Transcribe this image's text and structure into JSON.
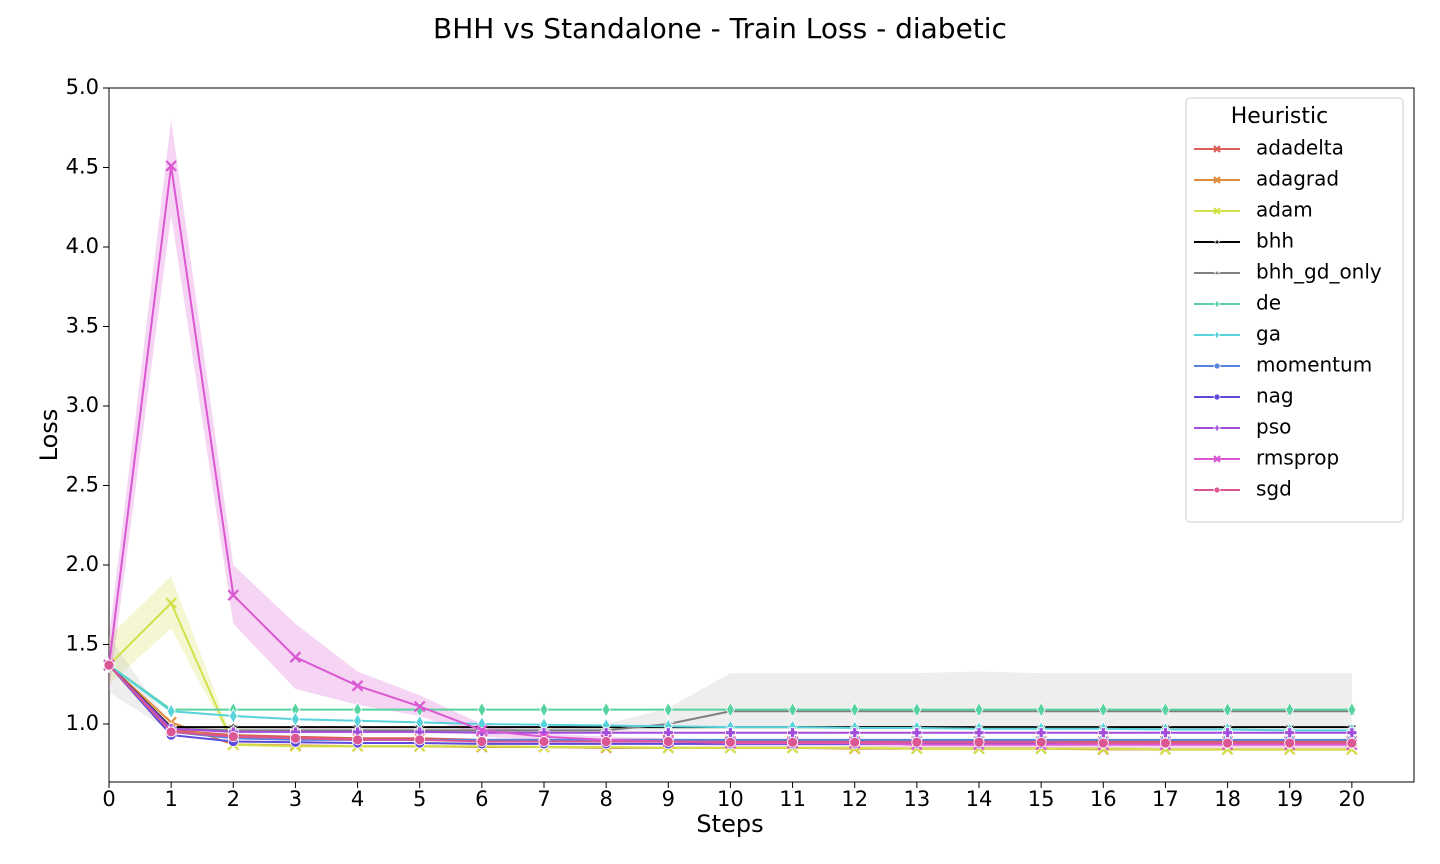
{
  "chart_data": {
    "type": "line",
    "title": "BHH vs Standalone - Train Loss - diabetic",
    "x_label": "Steps",
    "y_label": "Loss",
    "legend_title": "Heuristic",
    "legend": "upper right",
    "x": [
      0,
      1,
      2,
      3,
      4,
      5,
      6,
      7,
      8,
      9,
      10,
      11,
      12,
      13,
      14,
      15,
      16,
      17,
      18,
      19,
      20
    ],
    "xlim": [
      0,
      21
    ],
    "xticks": [
      0,
      1,
      2,
      3,
      4,
      5,
      6,
      7,
      8,
      9,
      10,
      11,
      12,
      13,
      14,
      15,
      16,
      17,
      18,
      19,
      20
    ],
    "ylim": [
      0.635,
      5.0
    ],
    "yticks": [
      {
        "value": 1.0,
        "label": "1.0"
      },
      1.5,
      {
        "value": 2.0,
        "label": "2.0"
      },
      2.5,
      {
        "value": 3.0,
        "label": "3.0"
      },
      3.5,
      {
        "value": 4.0,
        "label": "4.0"
      },
      4.5,
      {
        "value": 5.0,
        "label": "5.0"
      }
    ],
    "series": [
      {
        "name": "adadelta",
        "color": "#db5f57",
        "marker": "x",
        "values": [
          1.37,
          0.96,
          0.93,
          0.92,
          0.91,
          0.91,
          0.9,
          0.9,
          0.9,
          0.9,
          0.89,
          0.89,
          0.89,
          0.89,
          0.89,
          0.89,
          0.89,
          0.89,
          0.89,
          0.89,
          0.89
        ]
      },
      {
        "name": "adagrad",
        "color": "#e08c3e",
        "marker": "x",
        "values": [
          1.37,
          1.01,
          0.87,
          0.865,
          0.86,
          0.86,
          0.855,
          0.855,
          0.85,
          0.85,
          0.85,
          0.85,
          0.845,
          0.845,
          0.845,
          0.845,
          0.84,
          0.84,
          0.84,
          0.84,
          0.84
        ]
      },
      {
        "name": "adam",
        "color": "#d3e04c",
        "marker": "x",
        "values": [
          1.37,
          1.76,
          0.87,
          0.86,
          0.86,
          0.86,
          0.86,
          0.855,
          0.855,
          0.85,
          0.85,
          0.85,
          0.85,
          0.845,
          0.845,
          0.845,
          0.845,
          0.84,
          0.84,
          0.84,
          0.84
        ],
        "band_lower": [
          1.25,
          1.6,
          0.86,
          0.85,
          0.85,
          0.85,
          0.85,
          0.845,
          0.845,
          0.84,
          0.84,
          0.84,
          0.84,
          0.835,
          0.835,
          0.835,
          0.835,
          0.83,
          0.83,
          0.83,
          0.83
        ],
        "band_upper": [
          1.55,
          1.93,
          0.9,
          0.87,
          0.87,
          0.87,
          0.87,
          0.865,
          0.865,
          0.86,
          0.86,
          0.86,
          0.86,
          0.855,
          0.855,
          0.855,
          0.855,
          0.85,
          0.85,
          0.85,
          0.85
        ]
      },
      {
        "name": "bhh",
        "color": "#000000",
        "marker": "*",
        "values": [
          1.37,
          0.98,
          0.98,
          0.98,
          0.98,
          0.98,
          0.98,
          0.98,
          0.98,
          0.98,
          0.98,
          0.98,
          0.98,
          0.98,
          0.98,
          0.98,
          0.98,
          0.98,
          0.98,
          0.98,
          0.98
        ]
      },
      {
        "name": "bhh_gd_only",
        "color": "#7f7f7f",
        "marker": "*",
        "values": [
          1.37,
          0.97,
          0.96,
          0.96,
          0.96,
          0.96,
          0.96,
          0.96,
          0.96,
          1.0,
          1.08,
          1.08,
          1.08,
          1.08,
          1.08,
          1.08,
          1.08,
          1.08,
          1.08,
          1.08,
          1.08
        ],
        "band_lower": [
          1.2,
          0.95,
          0.94,
          0.94,
          0.94,
          0.94,
          0.94,
          0.94,
          0.94,
          0.96,
          0.98,
          0.98,
          0.98,
          0.98,
          0.98,
          0.98,
          0.98,
          0.98,
          0.98,
          0.98,
          0.98
        ],
        "band_upper": [
          1.55,
          0.99,
          0.98,
          0.98,
          0.98,
          0.98,
          0.98,
          0.98,
          1.0,
          1.1,
          1.32,
          1.32,
          1.32,
          1.32,
          1.33,
          1.32,
          1.32,
          1.32,
          1.32,
          1.32,
          1.32
        ]
      },
      {
        "name": "de",
        "color": "#57d3a0",
        "marker": "d",
        "values": [
          1.37,
          1.09,
          1.09,
          1.09,
          1.09,
          1.09,
          1.09,
          1.09,
          1.09,
          1.09,
          1.09,
          1.09,
          1.09,
          1.09,
          1.09,
          1.09,
          1.09,
          1.09,
          1.09,
          1.09,
          1.09
        ]
      },
      {
        "name": "ga",
        "color": "#57d3db",
        "marker": "d",
        "values": [
          1.37,
          1.08,
          1.05,
          1.03,
          1.02,
          1.01,
          1.0,
          0.995,
          0.99,
          0.985,
          0.98,
          0.98,
          0.975,
          0.975,
          0.97,
          0.97,
          0.97,
          0.965,
          0.965,
          0.96,
          0.96
        ]
      },
      {
        "name": "momentum",
        "color": "#5784db",
        "marker": "o",
        "values": [
          1.37,
          0.95,
          0.91,
          0.9,
          0.9,
          0.9,
          0.9,
          0.9,
          0.9,
          0.9,
          0.9,
          0.9,
          0.9,
          0.9,
          0.9,
          0.9,
          0.9,
          0.9,
          0.9,
          0.9,
          0.9
        ]
      },
      {
        "name": "nag",
        "color": "#5c49dd",
        "marker": "o",
        "values": [
          1.37,
          0.93,
          0.89,
          0.885,
          0.88,
          0.88,
          0.875,
          0.875,
          0.875,
          0.875,
          0.875,
          0.875,
          0.875,
          0.875,
          0.875,
          0.875,
          0.875,
          0.875,
          0.875,
          0.875,
          0.875
        ]
      },
      {
        "name": "pso",
        "color": "#a24cdb",
        "marker": "P",
        "values": [
          1.37,
          0.97,
          0.95,
          0.95,
          0.95,
          0.95,
          0.945,
          0.945,
          0.945,
          0.945,
          0.945,
          0.945,
          0.945,
          0.945,
          0.945,
          0.945,
          0.945,
          0.945,
          0.945,
          0.945,
          0.945
        ]
      },
      {
        "name": "rmsprop",
        "color": "#db57d3",
        "marker": "x",
        "values": [
          1.37,
          4.51,
          1.81,
          1.42,
          1.24,
          1.11,
          0.96,
          0.92,
          0.9,
          0.89,
          0.88,
          0.88,
          0.88,
          0.87,
          0.87,
          0.87,
          0.87,
          0.87,
          0.87,
          0.87,
          0.87
        ],
        "band_lower": [
          1.2,
          4.2,
          1.63,
          1.22,
          1.12,
          1.05,
          0.92,
          0.9,
          0.88,
          0.87,
          0.86,
          0.86,
          0.86,
          0.85,
          0.85,
          0.85,
          0.85,
          0.85,
          0.85,
          0.85,
          0.85
        ],
        "band_upper": [
          1.55,
          4.8,
          2.0,
          1.63,
          1.33,
          1.18,
          1.0,
          0.94,
          0.92,
          0.91,
          0.9,
          0.9,
          0.9,
          0.89,
          0.89,
          0.89,
          0.89,
          0.89,
          0.89,
          0.89,
          0.89
        ]
      },
      {
        "name": "sgd",
        "color": "#db5794",
        "marker": "o",
        "values": [
          1.37,
          0.95,
          0.92,
          0.91,
          0.9,
          0.9,
          0.89,
          0.89,
          0.89,
          0.89,
          0.885,
          0.885,
          0.885,
          0.885,
          0.885,
          0.885,
          0.88,
          0.88,
          0.88,
          0.88,
          0.88
        ]
      }
    ]
  }
}
